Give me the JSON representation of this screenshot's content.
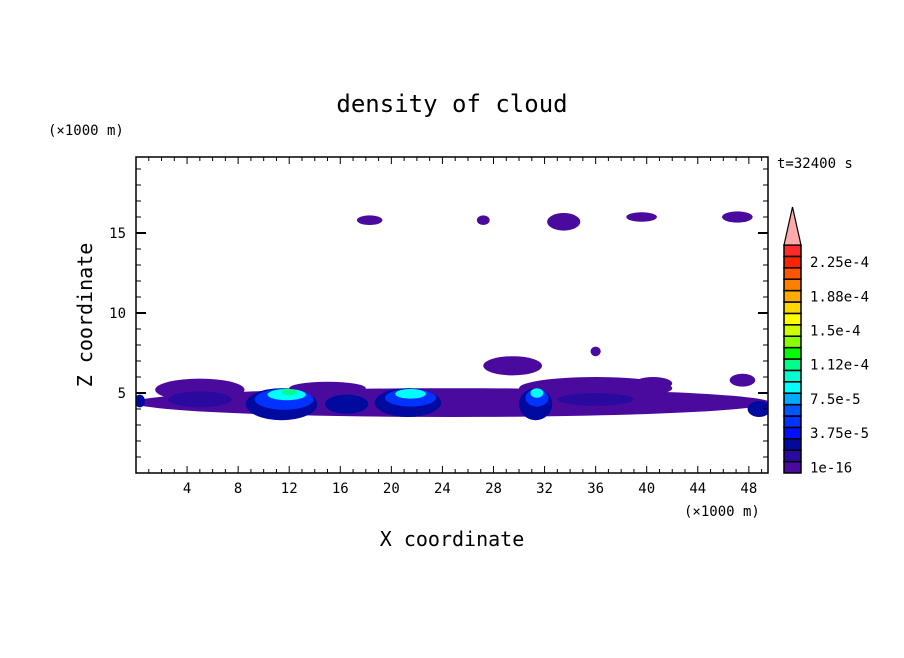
{
  "chart_data": {
    "type": "heatmap",
    "title": "density of cloud",
    "xlabel": "X coordinate",
    "ylabel": "Z coordinate",
    "x_unit": "(×1000 m)",
    "y_unit": "(×1000 m)",
    "time_label": "t=32400 s",
    "xlim": [
      0,
      49.5
    ],
    "ylim": [
      0,
      19.75
    ],
    "xticks": [
      4,
      8,
      12,
      16,
      20,
      24,
      28,
      32,
      36,
      40,
      44,
      48
    ],
    "yticks": [
      5,
      10,
      15
    ],
    "grid": false,
    "colorbar": {
      "levels_per_label": 3,
      "labels": [
        "1e-16",
        "3.75e-5",
        "7.5e-5",
        "1.12e-4",
        "1.5e-4",
        "1.88e-4",
        "2.25e-4"
      ],
      "colors": [
        "#4b0a9e",
        "#2a0a9e",
        "#000a9e",
        "#0010ff",
        "#0033ff",
        "#0055ff",
        "#00aaff",
        "#00ffff",
        "#00ffcc",
        "#00ff88",
        "#00ff00",
        "#88ff00",
        "#ccff00",
        "#ffff00",
        "#ffd700",
        "#ffaa00",
        "#ff7f00",
        "#ff5500",
        "#ff2200",
        "#ff2a2a"
      ],
      "over_color": "#ffaaaa"
    },
    "regions": [
      {
        "x": 24.75,
        "z": 4.4,
        "wx": 24.9,
        "wz": 0.9,
        "level": 0
      },
      {
        "x": 5,
        "z": 5.2,
        "wx": 3.5,
        "wz": 0.7,
        "level": 0
      },
      {
        "x": 15,
        "z": 5.3,
        "wx": 3,
        "wz": 0.4,
        "level": 0
      },
      {
        "x": 36,
        "z": 5.3,
        "wx": 6,
        "wz": 0.7,
        "level": 0
      },
      {
        "x": 40.5,
        "z": 5.6,
        "wx": 1.5,
        "wz": 0.4,
        "level": 0
      },
      {
        "x": 47.5,
        "z": 5.8,
        "wx": 1.0,
        "wz": 0.4,
        "level": 0
      },
      {
        "x": 29.5,
        "z": 6.7,
        "wx": 2.3,
        "wz": 0.6,
        "level": 0
      },
      {
        "x": 36,
        "z": 7.6,
        "wx": 0.4,
        "wz": 0.3,
        "level": 0
      },
      {
        "x": 18.3,
        "z": 15.8,
        "wx": 1.0,
        "wz": 0.3,
        "level": 0
      },
      {
        "x": 27.2,
        "z": 15.8,
        "wx": 0.5,
        "wz": 0.3,
        "level": 0
      },
      {
        "x": 33.5,
        "z": 15.7,
        "wx": 1.3,
        "wz": 0.55,
        "level": 0
      },
      {
        "x": 39.6,
        "z": 16.0,
        "wx": 1.2,
        "wz": 0.3,
        "level": 0
      },
      {
        "x": 47.1,
        "z": 16.0,
        "wx": 1.2,
        "wz": 0.35,
        "level": 0
      },
      {
        "x": 5,
        "z": 4.6,
        "wx": 2.5,
        "wz": 0.5,
        "level": 1
      },
      {
        "x": 36,
        "z": 4.6,
        "wx": 3,
        "wz": 0.4,
        "level": 1
      },
      {
        "x": 11.4,
        "z": 4.3,
        "wx": 2.8,
        "wz": 1.0,
        "level": 2
      },
      {
        "x": 16.5,
        "z": 4.3,
        "wx": 1.7,
        "wz": 0.6,
        "level": 2
      },
      {
        "x": 21.3,
        "z": 4.4,
        "wx": 2.6,
        "wz": 0.9,
        "level": 2
      },
      {
        "x": 31.3,
        "z": 4.3,
        "wx": 1.3,
        "wz": 1.0,
        "level": 2
      },
      {
        "x": 48.8,
        "z": 4.0,
        "wx": 0.9,
        "wz": 0.5,
        "level": 2
      },
      {
        "x": 0.3,
        "z": 4.5,
        "wx": 0.4,
        "wz": 0.4,
        "level": 2
      },
      {
        "x": 11.6,
        "z": 4.6,
        "wx": 2.3,
        "wz": 0.65,
        "level": 4
      },
      {
        "x": 21.5,
        "z": 4.7,
        "wx": 2.0,
        "wz": 0.55,
        "level": 4
      },
      {
        "x": 31.4,
        "z": 4.7,
        "wx": 0.9,
        "wz": 0.55,
        "level": 4
      },
      {
        "x": 11.8,
        "z": 4.9,
        "wx": 1.5,
        "wz": 0.35,
        "level": 7
      },
      {
        "x": 21.5,
        "z": 4.95,
        "wx": 1.2,
        "wz": 0.3,
        "level": 7
      },
      {
        "x": 31.4,
        "z": 5.0,
        "wx": 0.5,
        "wz": 0.3,
        "level": 7
      },
      {
        "x": 12.0,
        "z": 5.05,
        "wx": 0.6,
        "wz": 0.2,
        "level": 9
      }
    ]
  }
}
